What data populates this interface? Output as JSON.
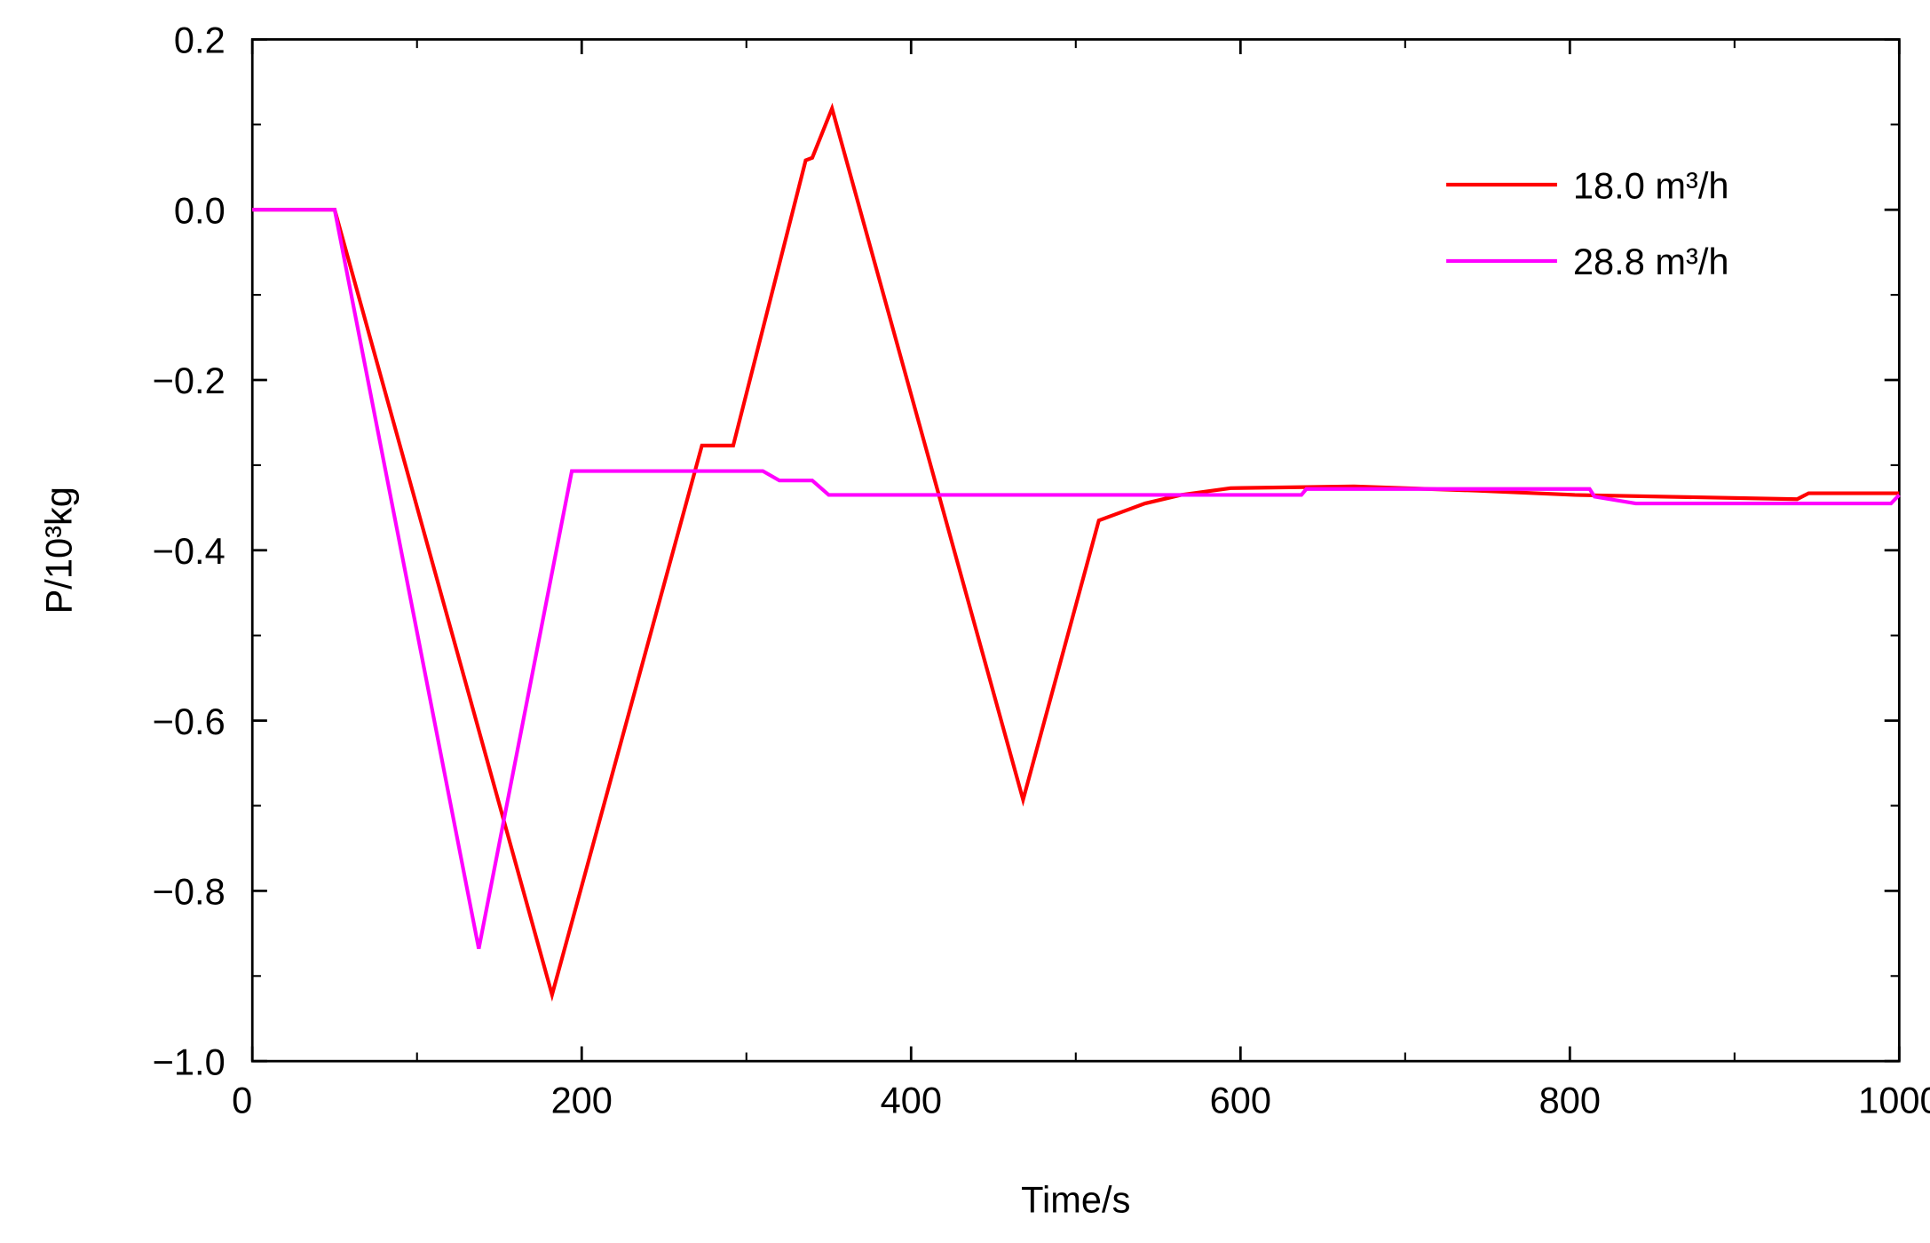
{
  "chart_data": {
    "type": "line",
    "x_label": "Time/s",
    "y_label": "P/10³kg",
    "xlim": [
      0,
      1000
    ],
    "ylim": [
      -1.0,
      0.2
    ],
    "xticks": [
      0,
      200,
      400,
      600,
      800,
      1000
    ],
    "yticks": [
      0.2,
      {
        "value": 0,
        "label": "0.0"
      },
      {
        "value": -0.2,
        "label": "−0.2"
      },
      {
        "value": -0.4,
        "label": "−0.4"
      },
      {
        "value": -0.6,
        "label": "−0.6"
      },
      {
        "value": -0.8,
        "label": "−0.8"
      },
      {
        "value": -1.0,
        "label": "−1.0"
      }
    ],
    "legend_position": "upper right",
    "series": [
      {
        "name": "18.0 m³/h",
        "color": "#ff0000",
        "x": [
          0,
          50,
          182,
          273,
          292,
          336,
          340,
          352,
          468,
          514,
          542,
          564,
          594,
          669,
          744,
          803,
          938,
          945,
          1000
        ],
        "values": [
          0,
          0,
          -0.922,
          -0.277,
          -0.277,
          0.058,
          0.061,
          0.119,
          -0.693,
          -0.365,
          -0.345,
          -0.335,
          -0.327,
          -0.325,
          -0.33,
          -0.335,
          -0.34,
          -0.333,
          -0.333
        ]
      },
      {
        "name": "28.8 m³/h",
        "color": "#ff00ff",
        "x": [
          0,
          50,
          137.5,
          194,
          310,
          320,
          340,
          350,
          637,
          640,
          812,
          815,
          840,
          995,
          1000
        ],
        "values": [
          0,
          0,
          -0.868,
          -0.307,
          -0.307,
          -0.318,
          -0.318,
          -0.335,
          -0.335,
          -0.328,
          -0.328,
          -0.337,
          -0.345,
          -0.345,
          -0.335
        ]
      }
    ]
  }
}
